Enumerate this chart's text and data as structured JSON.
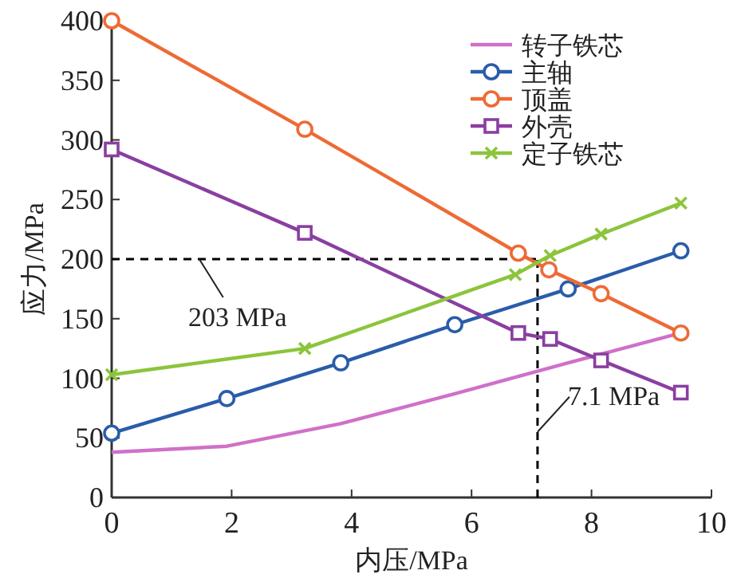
{
  "chart_data": {
    "type": "line",
    "xlabel": "内压/MPa",
    "ylabel": "应力/MPa",
    "xlim": [
      0,
      10
    ],
    "xticks": [
      0,
      2,
      4,
      6,
      8,
      10
    ],
    "ylim": [
      0,
      400
    ],
    "yticks": [
      0,
      50,
      100,
      150,
      200,
      250,
      300,
      350,
      400
    ],
    "grid": false,
    "legend": "top right",
    "line_style": "solid",
    "series": [
      {
        "name": "转子铁芯",
        "color": "#d070c8",
        "marker": "none",
        "x": [
          0,
          1.92,
          3.82,
          5.72,
          7.61,
          9.49
        ],
        "values": [
          38,
          43,
          62,
          87,
          113,
          138
        ]
      },
      {
        "name": "主轴",
        "color": "#2a5caa",
        "marker": "circle",
        "x": [
          0,
          1.92,
          3.82,
          5.72,
          7.61,
          9.49
        ],
        "values": [
          54,
          83,
          113,
          145,
          175,
          207
        ]
      },
      {
        "name": "顶盖",
        "color": "#ee6a35",
        "marker": "circle",
        "x": [
          0,
          3.22,
          6.78,
          7.29,
          8.16,
          9.49
        ],
        "values": [
          400,
          309,
          205,
          191,
          171,
          138
        ]
      },
      {
        "name": "外壳",
        "color": "#8a3fa0",
        "marker": "square",
        "x": [
          0,
          3.22,
          6.78,
          7.31,
          8.16,
          9.49
        ],
        "values": [
          292,
          222,
          138,
          133,
          115,
          88
        ]
      },
      {
        "name": "定子铁芯",
        "color": "#8cc43c",
        "marker": "cross",
        "x": [
          0,
          3.22,
          6.73,
          7.31,
          8.16,
          9.49
        ],
        "values": [
          103,
          125,
          187,
          203,
          221,
          247
        ]
      }
    ],
    "ref_lines": [
      {
        "axis": "y",
        "value": 200,
        "line_style": "dashed",
        "color": "#000000"
      },
      {
        "axis": "x",
        "value": 7.1,
        "line_style": "dashed",
        "color": "#000000"
      }
    ],
    "annotations": [
      {
        "text": "203 MPa",
        "x": 1.46,
        "y": 200
      },
      {
        "text": "7.1 MPa",
        "x": 7.1,
        "y": 55
      }
    ]
  }
}
